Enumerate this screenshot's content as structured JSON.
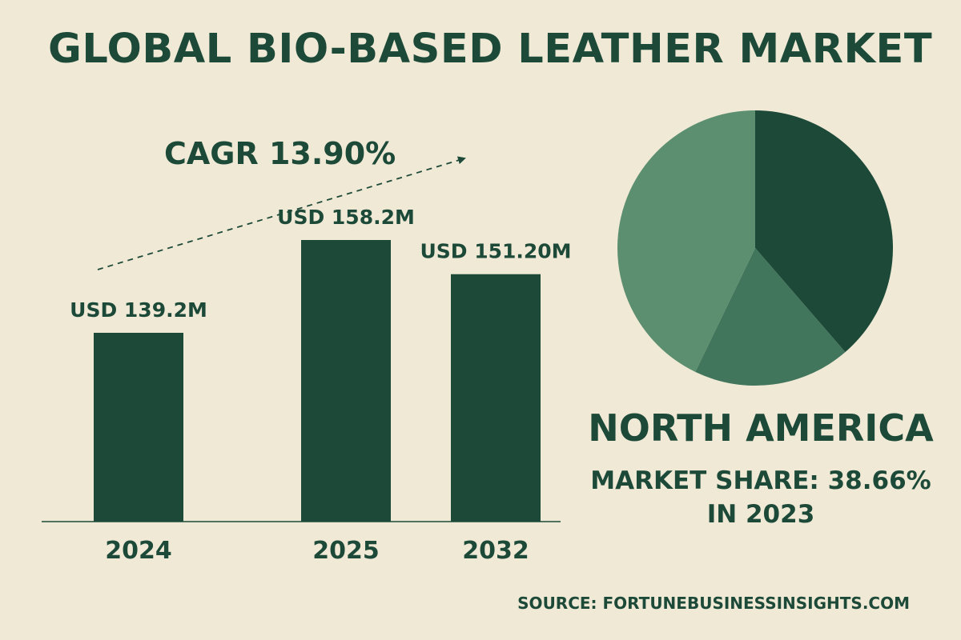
{
  "title": "GLOBAL BIO-BASED LEATHER MARKET",
  "colors": {
    "background": "#f0e9d6",
    "text": "#1d4a38",
    "bar": "#1d4a38",
    "pie_dark": "#1d4a38",
    "pie_mid": "#41755c",
    "pie_light": "#5c8f70"
  },
  "chart_data": [
    {
      "type": "bar",
      "annotation": "CAGR 13.90%",
      "categories": [
        "2024",
        "2025",
        "2032"
      ],
      "values": [
        139.2,
        158.2,
        151.2
      ],
      "value_labels": [
        "USD 139.2M",
        "USD 158.2M",
        "USD 151.20M"
      ],
      "xlabel": "",
      "ylabel": "",
      "grid": false
    },
    {
      "type": "pie",
      "slices": [
        {
          "value": 38.66,
          "color": "#1d4a38"
        },
        {
          "value": 18.5,
          "color": "#41755c"
        },
        {
          "value": 42.84,
          "color": "#5c8f70"
        }
      ]
    }
  ],
  "region": {
    "name": "NORTH AMERICA",
    "share_label": "MARKET SHARE: 38.66%",
    "share_year": "IN 2023"
  },
  "source": "SOURCE: FORTUNEBUSINESSINSIGHTS.COM"
}
